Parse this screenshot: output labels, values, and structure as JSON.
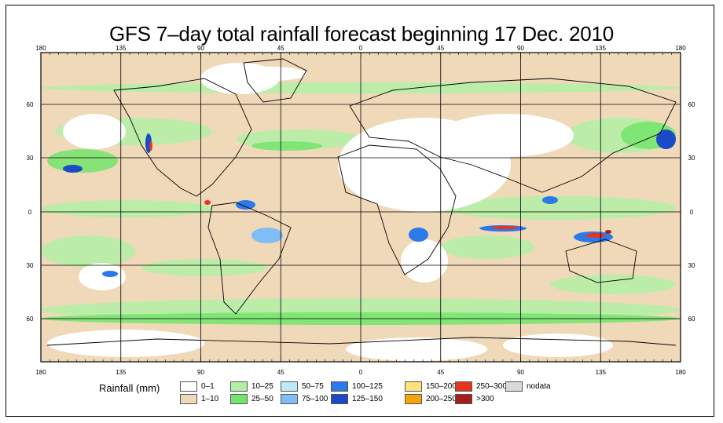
{
  "title": "GFS 7–day total rainfall forecast beginning 17 Dec. 2010",
  "axes": {
    "top_ticks": [
      "180",
      "135",
      "90",
      "45",
      "0",
      "45",
      "90",
      "135",
      "180"
    ],
    "bottom_ticks": [
      "180",
      "135",
      "90",
      "45",
      "0",
      "45",
      "90",
      "135",
      "180"
    ],
    "left_ticks": [
      "60",
      "30",
      "0",
      "30",
      "60"
    ],
    "right_ticks": [
      "60",
      "30",
      "0",
      "30",
      "60"
    ]
  },
  "legend": {
    "title": "Rainfall (mm)",
    "items": [
      {
        "label": "0–1",
        "color": "#ffffff"
      },
      {
        "label": "1–10",
        "color": "#efd9b9"
      },
      {
        "label": "10–25",
        "color": "#b2f0a6"
      },
      {
        "label": "25–50",
        "color": "#74e46c"
      },
      {
        "label": "50–75",
        "color": "#bfe8f8"
      },
      {
        "label": "75–100",
        "color": "#7fbdf5"
      },
      {
        "label": "100–125",
        "color": "#2c79ea"
      },
      {
        "label": "125–150",
        "color": "#1b49c8"
      },
      {
        "label": "150–200",
        "color": "#fde37a"
      },
      {
        "label": "200–250",
        "color": "#f6a30c"
      },
      {
        "label": "250–300",
        "color": "#e5361b"
      },
      {
        "label": ">300",
        "color": "#a41e1e"
      },
      {
        "label": "nodata",
        "color": "#d9d9d9"
      }
    ]
  }
}
